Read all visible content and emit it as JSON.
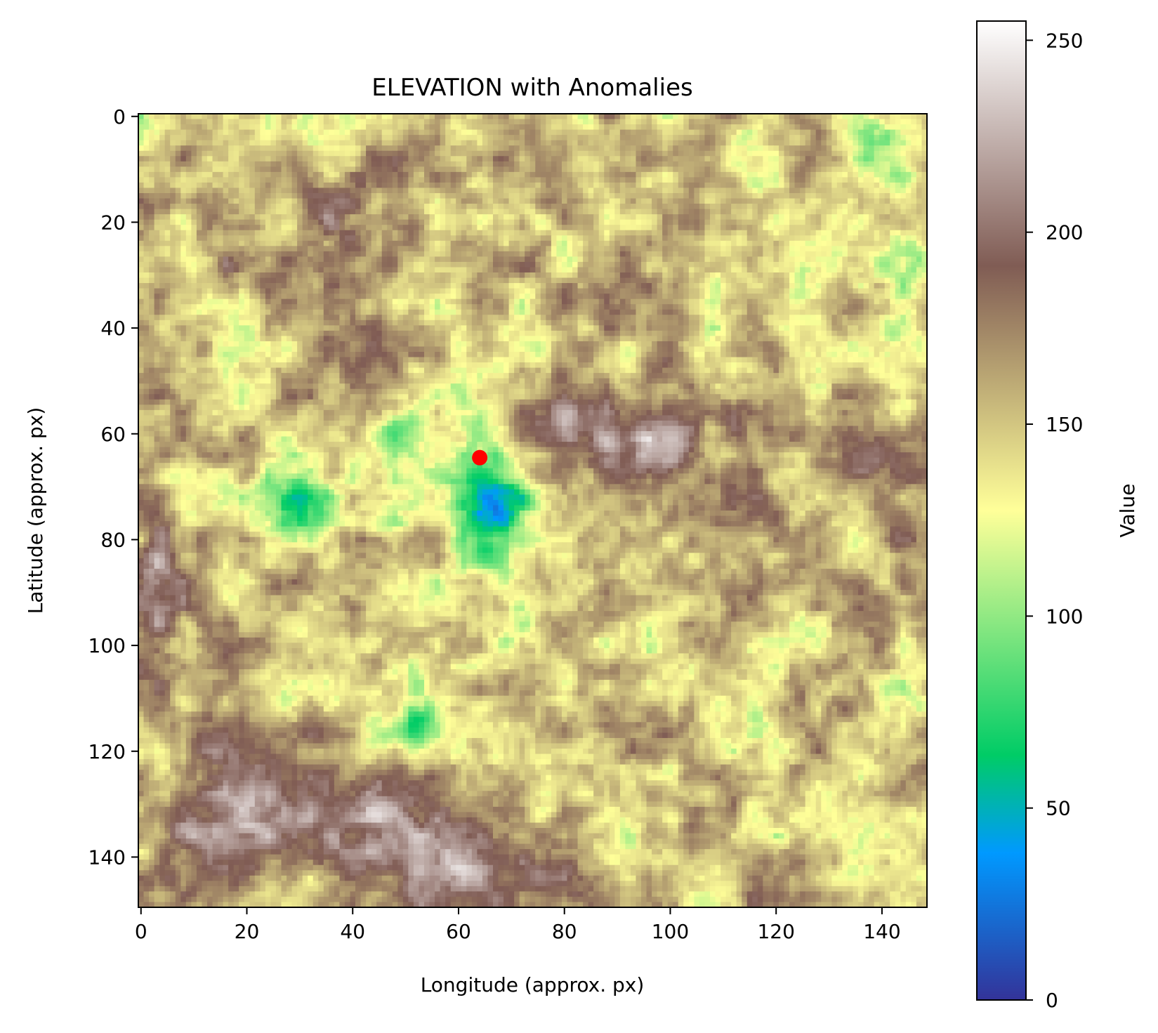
{
  "chart_data": {
    "type": "heatmap",
    "title": "ELEVATION with Anomalies",
    "xlabel": "Longitude (approx. px)",
    "ylabel": "Latitude (approx. px)",
    "colorbar_label": "Value",
    "colormap": "terrain",
    "xlim": [
      -0.5,
      148.5
    ],
    "ylim": [
      149.5,
      -0.5
    ],
    "y_inverted": true,
    "grid_shape": [
      150,
      149
    ],
    "x_ticks": [
      0,
      20,
      40,
      60,
      80,
      100,
      120,
      140
    ],
    "y_ticks": [
      0,
      20,
      40,
      60,
      80,
      100,
      120,
      140
    ],
    "value_range": [
      0,
      255
    ],
    "colorbar_ticks": [
      0,
      50,
      100,
      150,
      200,
      250
    ],
    "base_level": 150,
    "anomaly_marker": {
      "x": 64,
      "y": 64.5,
      "color": "#ff0000"
    },
    "features": [
      {
        "kind": "depression",
        "x": 66,
        "y": 74,
        "sx": 5,
        "sy": 8,
        "depth": 115
      },
      {
        "kind": "basin",
        "x": 31,
        "y": 74,
        "sx": 4.5,
        "sy": 5,
        "depth": 70
      },
      {
        "kind": "basin",
        "x": 48,
        "y": 59,
        "sx": 2.5,
        "sy": 2.5,
        "depth": 50
      },
      {
        "kind": "basin",
        "x": 52,
        "y": 115,
        "sx": 3,
        "sy": 2.5,
        "depth": 55
      },
      {
        "kind": "basin",
        "x": 46,
        "y": 77,
        "sx": 3,
        "sy": 1.5,
        "depth": 45
      },
      {
        "kind": "ridge",
        "x": 95,
        "y": 60,
        "sx": 14,
        "sy": 9,
        "depth": -45
      },
      {
        "kind": "ridge",
        "x": 140,
        "y": 67,
        "sx": 8,
        "sy": 8,
        "depth": -50
      },
      {
        "kind": "ridge",
        "x": 3,
        "y": 90,
        "sx": 3,
        "sy": 10,
        "depth": -65
      },
      {
        "kind": "ridge",
        "x": 50,
        "y": 137,
        "sx": 12,
        "sy": 7,
        "depth": -75
      },
      {
        "kind": "ridge",
        "x": 20,
        "y": 130,
        "sx": 10,
        "sy": 8,
        "depth": -60
      },
      {
        "kind": "ridge",
        "x": 75,
        "y": 145,
        "sx": 12,
        "sy": 5,
        "depth": -40
      },
      {
        "kind": "ridge",
        "x": 30,
        "y": 20,
        "sx": 12,
        "sy": 8,
        "depth": -30
      },
      {
        "kind": "lowland",
        "x": 130,
        "y": 30,
        "sx": 14,
        "sy": 14,
        "depth": 25
      },
      {
        "kind": "lowland",
        "x": 140,
        "y": 5,
        "sx": 5,
        "sy": 5,
        "depth": 45
      }
    ]
  }
}
